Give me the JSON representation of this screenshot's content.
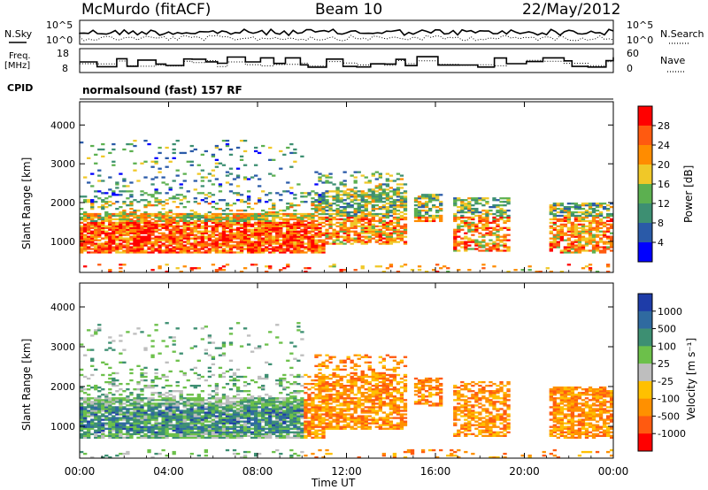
{
  "header": {
    "station": "McMurdo (fitACF)",
    "beam": "Beam 10",
    "date": "22/May/2012"
  },
  "top_panel": {
    "left_label": "N.Sky",
    "right_label": "N.Search",
    "left_ticks": [
      "10^5",
      "10^0"
    ],
    "right_ticks": [
      "10^5",
      "10^0"
    ]
  },
  "freq_panel": {
    "left_label_1": "Freq.",
    "left_label_2": "[MHz]",
    "right_label": "Nave",
    "left_ticks": [
      "18",
      "8"
    ],
    "right_ticks": [
      "60",
      "0"
    ]
  },
  "cpid": {
    "label": "CPID",
    "value": "normalsound (fast) 157 RF"
  },
  "chart_data": [
    {
      "type": "heatmap",
      "name": "power",
      "ylabel": "Slant Range [km]",
      "yticks": [
        "1000",
        "2000",
        "3000",
        "4000"
      ],
      "ylim": [
        200,
        4600
      ],
      "colorbar_label": "Power [dB]",
      "colorbar_ticks": [
        "4",
        "8",
        "12",
        "16",
        "20",
        "24",
        "28"
      ],
      "colors": [
        "#0000ff",
        "#2a5aa8",
        "#3d8f72",
        "#5cb050",
        "#f0c828",
        "#ff8c00",
        "#ff5a10",
        "#ff0000"
      ]
    },
    {
      "type": "heatmap",
      "name": "velocity",
      "ylabel": "Slant Range [km]",
      "yticks": [
        "1000",
        "2000",
        "3000",
        "4000"
      ],
      "ylim": [
        200,
        4600
      ],
      "colorbar_label": "Velocity [m s⁻¹]",
      "colorbar_ticks": [
        "1000",
        "500",
        "100",
        "25",
        "-25",
        "-100",
        "-500",
        "-1000"
      ],
      "colors": [
        "#1e3ca8",
        "#2f6aa0",
        "#3d8f72",
        "#6cc04a",
        "#bebebe",
        "#ffc000",
        "#ff9000",
        "#ff5a10",
        "#ff0000"
      ]
    }
  ],
  "x_axis": {
    "ticks": [
      "00:00",
      "04:00",
      "08:00",
      "12:00",
      "16:00",
      "20:00",
      "00:00"
    ],
    "label": "Time UT"
  }
}
